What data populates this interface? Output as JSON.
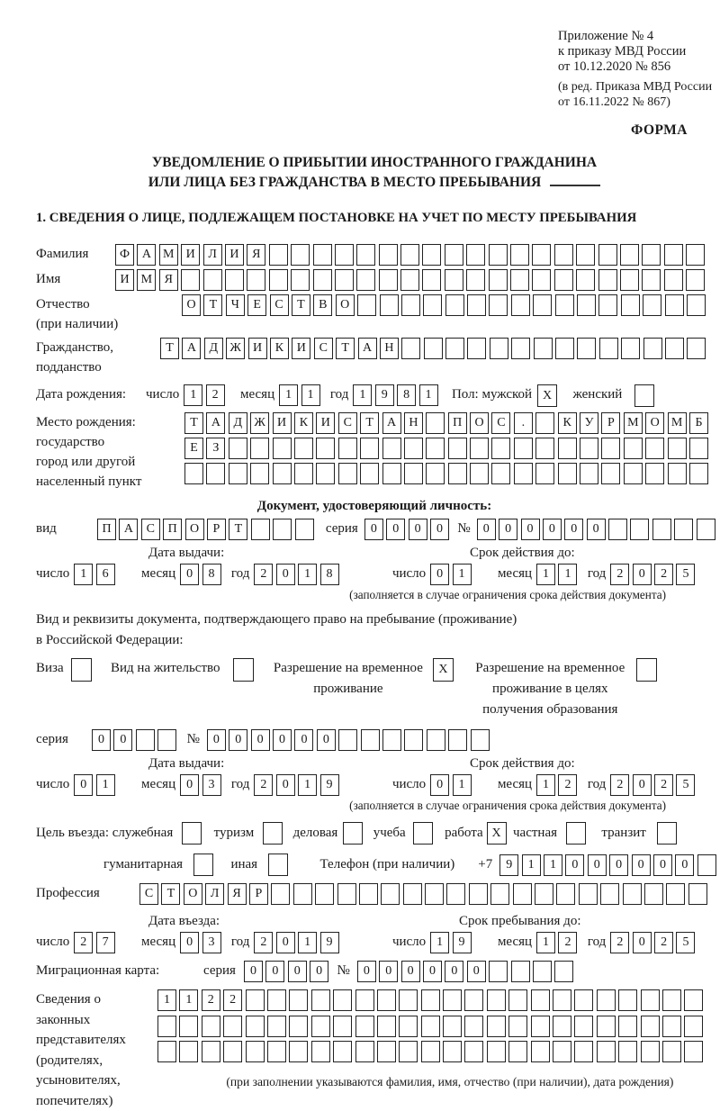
{
  "colors": {
    "ink": "#1a1a1a",
    "paper": "#ffffff"
  },
  "doc_header": {
    "appendix_lines": [
      "Приложение № 4",
      "к приказу МВД России",
      "от 10.12.2020 № 856"
    ],
    "edition_lines": [
      "(в ред. Приказа МВД России",
      "от 16.11.2022 № 867)"
    ],
    "form_label": "ФОРМА"
  },
  "title": {
    "line1": "УВЕДОМЛЕНИЕ О ПРИБЫТИИ ИНОСТРАННОГО ГРАЖДАНИНА",
    "line2": "ИЛИ ЛИЦА БЕЗ ГРАЖДАНСТВА В МЕСТО ПРЕБЫВАНИЯ"
  },
  "section1_heading": "1. СВЕДЕНИЯ О ЛИЦЕ, ПОДЛЕЖАЩЕМ ПОСТАНОВКЕ НА УЧЕТ ПО МЕСТУ ПРЕБЫВАНИЯ",
  "labels": {
    "surname": "Фамилия",
    "given_name": "Имя",
    "patronymic_1": "Отчество",
    "patronymic_2": "(при наличии)",
    "citizenship_1": "Гражданство,",
    "citizenship_2": "подданство",
    "birth_date": "Дата рождения:",
    "day": "число",
    "month": "месяц",
    "year": "год",
    "sex_male": "Пол: мужской",
    "sex_female": "женский",
    "birth_place": "Место рождения:",
    "state": "государство",
    "city_1": "город или другой",
    "city_2": "населенный пункт",
    "identity_doc_heading": "Документ, удостоверяющий личность:",
    "doc_kind": "вид",
    "series": "серия",
    "number_sign": "№",
    "issue_date": "Дата выдачи:",
    "valid_until": "Срок действия до:",
    "restriction_note": "(заполняется в случае ограничения срока действия документа)",
    "resident_doc_line1": "Вид и реквизиты документа, подтверждающего право на пребывание (проживание)",
    "resident_doc_line2": "в Российской Федерации:",
    "visa": "Виза",
    "residence_permit": "Вид на жительство",
    "temp_residence_1": "Разрешение на временное",
    "temp_residence_2": "проживание",
    "temp_residence_edu_1": "Разрешение на временное",
    "temp_residence_edu_2": "проживание в целях",
    "temp_residence_edu_3": "получения образования",
    "purpose": "Цель въезда: служебная",
    "tourism": "туризм",
    "business": "деловая",
    "study": "учеба",
    "work": "работа",
    "private": "частная",
    "transit": "транзит",
    "humanitarian": "гуманитарная",
    "other_purpose": "иная",
    "phone": "Телефон (при наличии)",
    "phone_prefix": "+7",
    "profession": "Профессия",
    "entry_date": "Дата въезда:",
    "stay_until": "Срок пребывания до:",
    "migration_card": "Миграционная карта:",
    "legal_rep_lines": [
      "Сведения о",
      "законных",
      "представителях",
      "(родителях,",
      "усыновителях,",
      "попечителях)"
    ],
    "legal_rep_note": "(при заполнении указываются фамилия, имя, отчество (при наличии), дата рождения)"
  },
  "boxes": {
    "surname": {
      "value": "ФАМИЛИЯ",
      "cells": 27
    },
    "given_name": {
      "value": "ИМЯ",
      "cells": 27
    },
    "patronymic": {
      "value": "ОТЧЕСТВО",
      "cells": 24
    },
    "citizenship": {
      "value": "ТАДЖИКИСТАН",
      "cells": 25
    },
    "birth_day": {
      "value": "12",
      "cells": 2
    },
    "birth_month": {
      "value": "11",
      "cells": 2
    },
    "birth_year": {
      "value": "1981",
      "cells": 4
    },
    "sex_male_cb": {
      "value": "X",
      "cells": 1
    },
    "sex_female_cb": {
      "value": "",
      "cells": 1
    },
    "birth_place_row1": {
      "value": "ТАДЖИКИСТАН ПОС. КУРМОМБ",
      "cells": 24
    },
    "birth_place_row2": {
      "value": "ЕЗ",
      "cells": 24
    },
    "birth_place_row3": {
      "value": "",
      "cells": 24
    },
    "doc_kind": {
      "value": "ПАСПОРТ",
      "cells": 10
    },
    "doc_series": {
      "value": "0000",
      "cells": 4
    },
    "doc_number": {
      "value": "000000",
      "cells": 11
    },
    "doc_issue_day": {
      "value": "16",
      "cells": 2
    },
    "doc_issue_month": {
      "value": "08",
      "cells": 2
    },
    "doc_issue_year": {
      "value": "2018",
      "cells": 4
    },
    "doc_expiry_day": {
      "value": "01",
      "cells": 2
    },
    "doc_expiry_month": {
      "value": "11",
      "cells": 2
    },
    "doc_expiry_year": {
      "value": "2025",
      "cells": 4
    },
    "visa_cb": {
      "value": "",
      "cells": 1
    },
    "residence_permit_cb": {
      "value": "",
      "cells": 1
    },
    "temp_residence_cb": {
      "value": "X",
      "cells": 1
    },
    "temp_residence_edu_cb": {
      "value": "",
      "cells": 1
    },
    "permit_series": {
      "value": "00",
      "cells": 4
    },
    "permit_number": {
      "value": "000000",
      "cells": 13
    },
    "permit_issue_day": {
      "value": "01",
      "cells": 2
    },
    "permit_issue_month": {
      "value": "03",
      "cells": 2
    },
    "permit_issue_year": {
      "value": "2019",
      "cells": 4
    },
    "permit_expiry_day": {
      "value": "01",
      "cells": 2
    },
    "permit_expiry_month": {
      "value": "12",
      "cells": 2
    },
    "permit_expiry_year": {
      "value": "2025",
      "cells": 4
    },
    "purpose_official_cb": {
      "value": "",
      "cells": 1
    },
    "purpose_tourism_cb": {
      "value": "",
      "cells": 1
    },
    "purpose_business_cb": {
      "value": "",
      "cells": 1
    },
    "purpose_study_cb": {
      "value": "",
      "cells": 1
    },
    "purpose_work_cb": {
      "value": "X",
      "cells": 1
    },
    "purpose_private_cb": {
      "value": "",
      "cells": 1
    },
    "purpose_transit_cb": {
      "value": "",
      "cells": 1
    },
    "purpose_humanitarian_cb": {
      "value": "",
      "cells": 1
    },
    "purpose_other_cb": {
      "value": "",
      "cells": 1
    },
    "phone": {
      "value": "911000000",
      "cells": 10
    },
    "profession": {
      "value": "СТОЛЯР",
      "cells": 26
    },
    "entry_day": {
      "value": "27",
      "cells": 2
    },
    "entry_month": {
      "value": "03",
      "cells": 2
    },
    "entry_year": {
      "value": "2019",
      "cells": 4
    },
    "stay_day": {
      "value": "19",
      "cells": 2
    },
    "stay_month": {
      "value": "12",
      "cells": 2
    },
    "stay_year": {
      "value": "2025",
      "cells": 4
    },
    "migcard_series": {
      "value": "0000",
      "cells": 4
    },
    "migcard_number": {
      "value": "000000",
      "cells": 10
    },
    "legal_rep_row1": {
      "value": "1122",
      "cells": 25
    },
    "legal_rep_row2": {
      "value": "",
      "cells": 25
    },
    "legal_rep_row3": {
      "value": "",
      "cells": 25
    }
  }
}
